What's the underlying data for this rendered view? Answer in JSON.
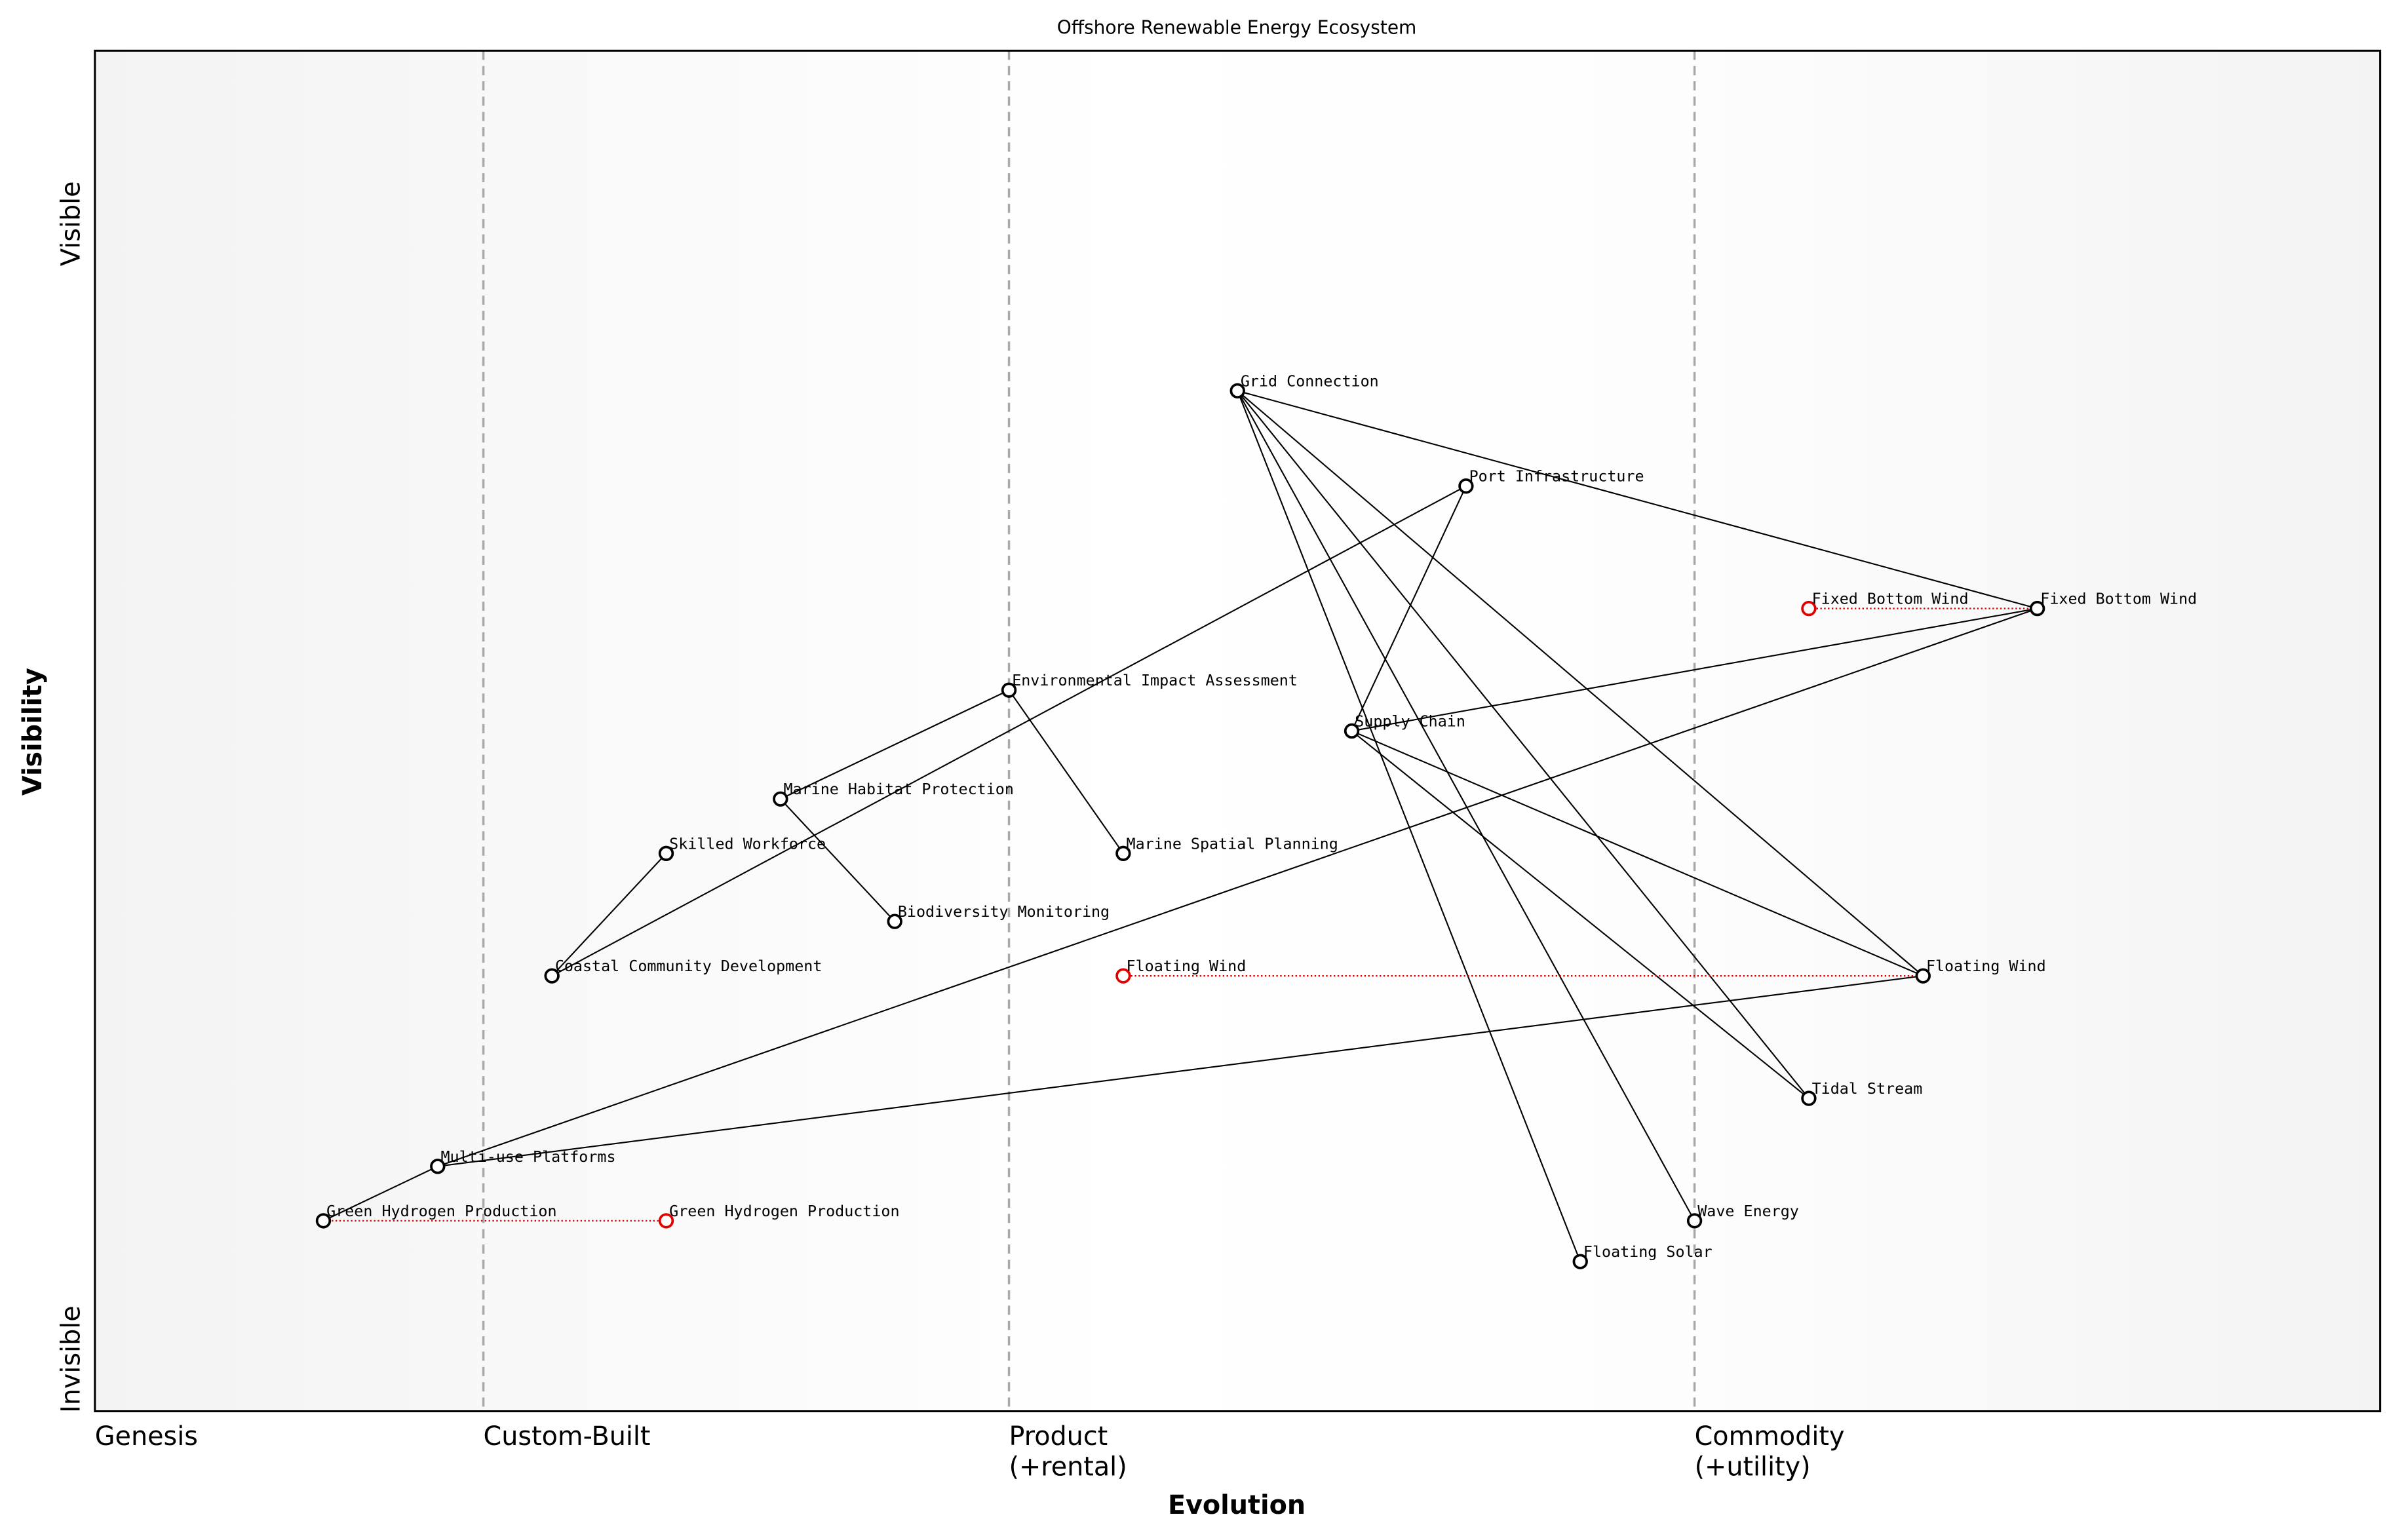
{
  "chart_data": {
    "type": "wardley",
    "title": "Offshore Renewable Energy Ecosystem",
    "xlabel": "Evolution",
    "ylabel": "Visibility",
    "ylabel_top": "Visible",
    "ylabel_bottom": "Invisible",
    "xlim": [
      0,
      1
    ],
    "ylim": [
      0,
      1
    ],
    "stages": [
      {
        "value": 0,
        "label": "Genesis"
      },
      {
        "value": 0.17,
        "label": "Custom-Built"
      },
      {
        "value": 0.4,
        "label": "Product\n(+rental)"
      },
      {
        "value": 0.7,
        "label": "Commodity\n(+utility)"
      }
    ],
    "components": [
      {
        "name": "Grid Connection",
        "evolution": 0.5,
        "visibility": 0.75
      },
      {
        "name": "Port Infrastructure",
        "evolution": 0.6,
        "visibility": 0.68
      },
      {
        "name": "Fixed Bottom Wind",
        "evolution": 0.85,
        "visibility": 0.59
      },
      {
        "name": "Environmental Impact Assessment",
        "evolution": 0.4,
        "visibility": 0.53
      },
      {
        "name": "Supply Chain",
        "evolution": 0.55,
        "visibility": 0.5
      },
      {
        "name": "Marine Habitat Protection",
        "evolution": 0.3,
        "visibility": 0.45
      },
      {
        "name": "Skilled Workforce",
        "evolution": 0.25,
        "visibility": 0.41
      },
      {
        "name": "Marine Spatial Planning",
        "evolution": 0.45,
        "visibility": 0.41
      },
      {
        "name": "Biodiversity Monitoring",
        "evolution": 0.35,
        "visibility": 0.36
      },
      {
        "name": "Coastal Community Development",
        "evolution": 0.2,
        "visibility": 0.32
      },
      {
        "name": "Floating Wind",
        "evolution": 0.8,
        "visibility": 0.32
      },
      {
        "name": "Tidal Stream",
        "evolution": 0.75,
        "visibility": 0.23
      },
      {
        "name": "Multi-use Platforms",
        "evolution": 0.15,
        "visibility": 0.18
      },
      {
        "name": "Green Hydrogen Production",
        "evolution": 0.1,
        "visibility": 0.14
      },
      {
        "name": "Wave Energy",
        "evolution": 0.7,
        "visibility": 0.14
      },
      {
        "name": "Floating Solar",
        "evolution": 0.65,
        "visibility": 0.11
      }
    ],
    "evolves": [
      {
        "component": "Fixed Bottom Wind",
        "label": "Fixed Bottom Wind",
        "evolution": 0.75
      },
      {
        "component": "Floating Wind",
        "label": "Floating Wind",
        "evolution": 0.45
      },
      {
        "component": "Green Hydrogen Production",
        "label": "Green Hydrogen Production",
        "evolution": 0.25
      }
    ],
    "links": [
      {
        "from": "Grid Connection",
        "to": "Fixed Bottom Wind"
      },
      {
        "from": "Grid Connection",
        "to": "Floating Wind"
      },
      {
        "from": "Grid Connection",
        "to": "Tidal Stream"
      },
      {
        "from": "Grid Connection",
        "to": "Wave Energy"
      },
      {
        "from": "Grid Connection",
        "to": "Floating Solar"
      },
      {
        "from": "Port Infrastructure",
        "to": "Supply Chain"
      },
      {
        "from": "Port Infrastructure",
        "to": "Coastal Community Development"
      },
      {
        "from": "Supply Chain",
        "to": "Fixed Bottom Wind"
      },
      {
        "from": "Supply Chain",
        "to": "Floating Wind"
      },
      {
        "from": "Supply Chain",
        "to": "Tidal Stream"
      },
      {
        "from": "Environmental Impact Assessment",
        "to": "Marine Habitat Protection"
      },
      {
        "from": "Environmental Impact Assessment",
        "to": "Marine Spatial Planning"
      },
      {
        "from": "Marine Habitat Protection",
        "to": "Biodiversity Monitoring"
      },
      {
        "from": "Skilled Workforce",
        "to": "Coastal Community Development"
      },
      {
        "from": "Multi-use Platforms",
        "to": "Fixed Bottom Wind"
      },
      {
        "from": "Multi-use Platforms",
        "to": "Floating Wind"
      },
      {
        "from": "Multi-use Platforms",
        "to": "Green Hydrogen Production"
      }
    ],
    "node_color": "#000000",
    "evolve_color": "#e00000"
  }
}
